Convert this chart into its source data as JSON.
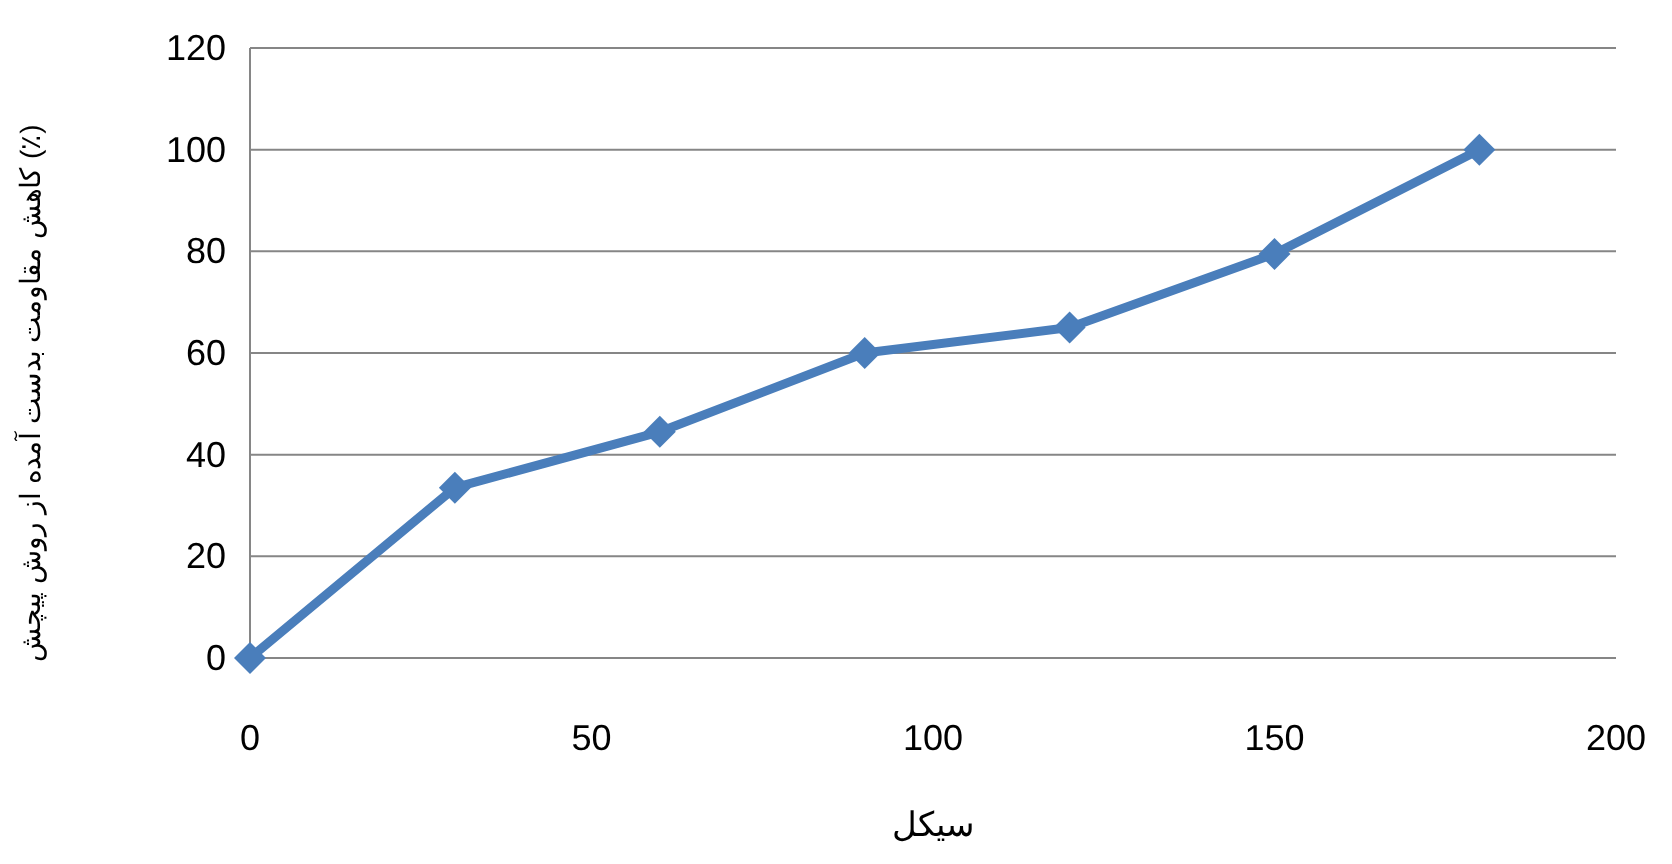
{
  "chart_data": {
    "type": "line",
    "xlabel": "سیکل",
    "ylabel": "کاهش مقاومت بدست آمده از روش پیچش (٪)",
    "x": [
      0,
      30,
      60,
      90,
      120,
      150,
      180
    ],
    "series": [
      {
        "color": "#4a7ebb",
        "values": [
          0,
          33.5,
          44.5,
          60,
          65,
          79.5,
          100
        ]
      }
    ],
    "xlim": [
      0,
      200
    ],
    "xticks": [
      0,
      50,
      100,
      150,
      200
    ],
    "ylim": [
      0,
      120
    ],
    "yticks": [
      0,
      20,
      40,
      60,
      80,
      100,
      120
    ],
    "grid": "y",
    "marker": "diamond",
    "line_style": "solid"
  }
}
